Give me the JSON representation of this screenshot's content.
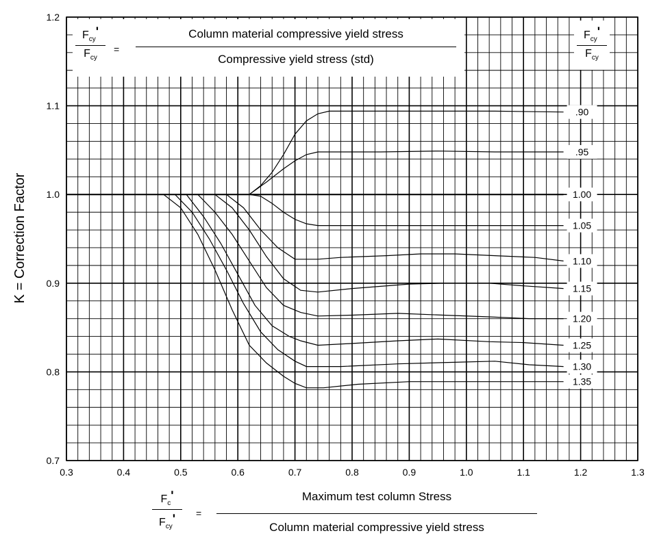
{
  "chart_data": {
    "type": "line",
    "xlim": [
      0.3,
      1.3
    ],
    "ylim": [
      0.7,
      1.2
    ],
    "x_ticks": [
      "0.3",
      "0.4",
      "0.5",
      "0.6",
      "0.7",
      "0.8",
      "0.9",
      "1.0",
      "1.1",
      "1.2",
      "1.3"
    ],
    "y_ticks": [
      "0.7",
      "0.8",
      "0.9",
      "1.0",
      "1.1",
      "1.2"
    ],
    "ylabel": "K = Correction Factor",
    "grid": true,
    "series": [
      {
        "name": ".90",
        "x": [
          0.3,
          0.62,
          0.64,
          0.66,
          0.68,
          0.7,
          0.72,
          0.74,
          0.76,
          0.78,
          0.85,
          0.95,
          1.05,
          1.17
        ],
        "y": [
          1.0,
          1.0,
          1.01,
          1.025,
          1.045,
          1.068,
          1.083,
          1.091,
          1.094,
          1.094,
          1.094,
          1.094,
          1.094,
          1.093
        ]
      },
      {
        "name": ".95",
        "x": [
          0.3,
          0.62,
          0.65,
          0.68,
          0.7,
          0.72,
          0.74,
          0.76,
          0.85,
          0.95,
          1.05,
          1.17
        ],
        "y": [
          1.0,
          1.0,
          1.014,
          1.029,
          1.038,
          1.045,
          1.048,
          1.048,
          1.048,
          1.049,
          1.048,
          1.048
        ]
      },
      {
        "name": "1.00",
        "x": [
          0.3,
          0.5,
          0.6,
          0.7,
          0.8,
          0.9,
          1.0,
          1.1,
          1.17
        ],
        "y": [
          1.0,
          1.0,
          1.0,
          1.0,
          1.0,
          1.0,
          1.0,
          1.0,
          1.0
        ]
      },
      {
        "name": "1.05",
        "x": [
          0.3,
          0.6,
          0.62,
          0.64,
          0.66,
          0.68,
          0.7,
          0.72,
          0.74,
          0.76,
          0.85,
          0.95,
          1.05,
          1.17
        ],
        "y": [
          1.0,
          1.0,
          1.0,
          0.998,
          0.99,
          0.98,
          0.972,
          0.967,
          0.965,
          0.965,
          0.965,
          0.965,
          0.965,
          0.965
        ]
      },
      {
        "name": "1.10",
        "x": [
          0.3,
          0.58,
          0.61,
          0.64,
          0.67,
          0.7,
          0.74,
          0.78,
          0.86,
          0.92,
          0.98,
          1.05,
          1.12,
          1.17
        ],
        "y": [
          1.0,
          1.0,
          0.985,
          0.96,
          0.94,
          0.927,
          0.927,
          0.929,
          0.931,
          0.933,
          0.933,
          0.931,
          0.929,
          0.925
        ]
      },
      {
        "name": "1.15",
        "x": [
          0.3,
          0.56,
          0.59,
          0.62,
          0.65,
          0.68,
          0.71,
          0.74,
          0.8,
          0.9,
          0.96,
          1.04,
          1.1,
          1.17
        ],
        "y": [
          1.0,
          1.0,
          0.985,
          0.96,
          0.93,
          0.905,
          0.892,
          0.89,
          0.894,
          0.899,
          0.9,
          0.9,
          0.897,
          0.894
        ]
      },
      {
        "name": "1.20",
        "x": [
          0.3,
          0.53,
          0.56,
          0.59,
          0.62,
          0.65,
          0.68,
          0.71,
          0.74,
          0.8,
          0.88,
          0.96,
          1.04,
          1.11,
          1.17
        ],
        "y": [
          1.0,
          1.0,
          0.98,
          0.955,
          0.925,
          0.895,
          0.875,
          0.867,
          0.863,
          0.864,
          0.866,
          0.864,
          0.862,
          0.86,
          0.86
        ]
      },
      {
        "name": "1.25",
        "x": [
          0.3,
          0.51,
          0.54,
          0.57,
          0.6,
          0.63,
          0.66,
          0.69,
          0.71,
          0.74,
          0.8,
          0.88,
          0.95,
          1.04,
          1.1,
          1.17
        ],
        "y": [
          1.0,
          1.0,
          0.975,
          0.945,
          0.91,
          0.875,
          0.852,
          0.84,
          0.835,
          0.83,
          0.832,
          0.835,
          0.837,
          0.834,
          0.833,
          0.83
        ]
      },
      {
        "name": "1.30",
        "x": [
          0.3,
          0.49,
          0.52,
          0.55,
          0.58,
          0.61,
          0.64,
          0.67,
          0.7,
          0.72,
          0.78,
          0.88,
          0.99,
          1.05,
          1.11,
          1.17
        ],
        "y": [
          1.0,
          1.0,
          0.98,
          0.95,
          0.915,
          0.877,
          0.845,
          0.825,
          0.812,
          0.806,
          0.806,
          0.809,
          0.811,
          0.812,
          0.808,
          0.806
        ]
      },
      {
        "name": "1.35",
        "x": [
          0.3,
          0.47,
          0.5,
          0.53,
          0.56,
          0.59,
          0.62,
          0.65,
          0.68,
          0.7,
          0.72,
          0.75,
          0.81,
          0.9,
          1.0,
          1.1,
          1.17
        ],
        "y": [
          1.0,
          1.0,
          0.985,
          0.955,
          0.915,
          0.87,
          0.83,
          0.81,
          0.795,
          0.787,
          0.782,
          0.782,
          0.786,
          0.789,
          0.789,
          0.789,
          0.789
        ]
      }
    ]
  },
  "top_formula": {
    "num_main": "F",
    "num_sub": "cy",
    "den_main": "F",
    "den_sub": "cy",
    "equals": "=",
    "numerator_text": "Column material compressive yield stress",
    "denominator_text": "Compressive yield stress (std)"
  },
  "legend_header": {
    "num_main": "F",
    "num_sub": "cy",
    "den_main": "F",
    "den_sub": "cy"
  },
  "x_formula": {
    "num_main": "F",
    "num_sub": "c",
    "den_main": "F",
    "den_sub": "cy",
    "equals": "=",
    "numerator_text": "Maximum test column Stress",
    "denominator_text": "Column material compressive yield stress"
  }
}
